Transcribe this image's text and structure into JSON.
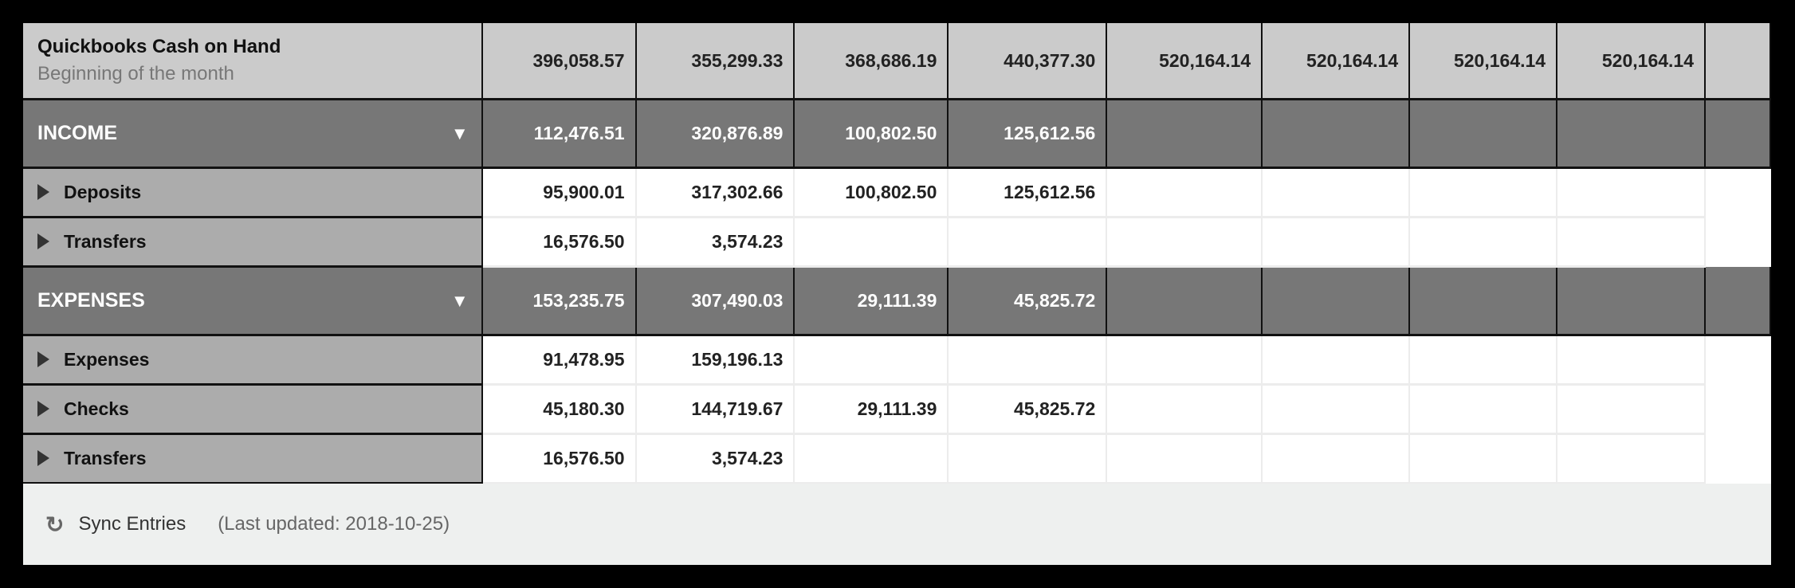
{
  "header": {
    "title": "Quickbooks Cash on Hand",
    "subtitle": "Beginning of the month",
    "values": [
      "396,058.57",
      "355,299.33",
      "368,686.19",
      "440,377.30",
      "520,164.14",
      "520,164.14",
      "520,164.14",
      "520,164.14",
      ""
    ]
  },
  "groups": [
    {
      "label": "INCOME",
      "values": [
        "112,476.51",
        "320,876.89",
        "100,802.50",
        "125,612.56",
        "",
        "",
        "",
        "",
        ""
      ],
      "rows": [
        {
          "label": "Deposits",
          "values": [
            "95,900.01",
            "317,302.66",
            "100,802.50",
            "125,612.56",
            "",
            "",
            "",
            ""
          ]
        },
        {
          "label": "Transfers",
          "values": [
            "16,576.50",
            "3,574.23",
            "",
            "",
            "",
            "",
            "",
            ""
          ]
        }
      ]
    },
    {
      "label": "EXPENSES",
      "values": [
        "153,235.75",
        "307,490.03",
        "29,111.39",
        "45,825.72",
        "",
        "",
        "",
        "",
        ""
      ],
      "rows": [
        {
          "label": "Expenses",
          "values": [
            "91,478.95",
            "159,196.13",
            "",
            "",
            "",
            "",
            "",
            ""
          ]
        },
        {
          "label": "Checks",
          "values": [
            "45,180.30",
            "144,719.67",
            "29,111.39",
            "45,825.72",
            "",
            "",
            "",
            ""
          ]
        },
        {
          "label": "Transfers",
          "values": [
            "16,576.50",
            "3,574.23",
            "",
            "",
            "",
            "",
            "",
            ""
          ]
        }
      ]
    }
  ],
  "footer": {
    "sync_label": "Sync Entries",
    "last_updated": "(Last updated: 2018-10-25)",
    "sync_icon": "refresh-icon"
  },
  "colors": {
    "header_bg": "#cbcbcb",
    "group_bg": "#777777",
    "label_bg": "#acacac",
    "footer_bg": "#eef0ef"
  }
}
